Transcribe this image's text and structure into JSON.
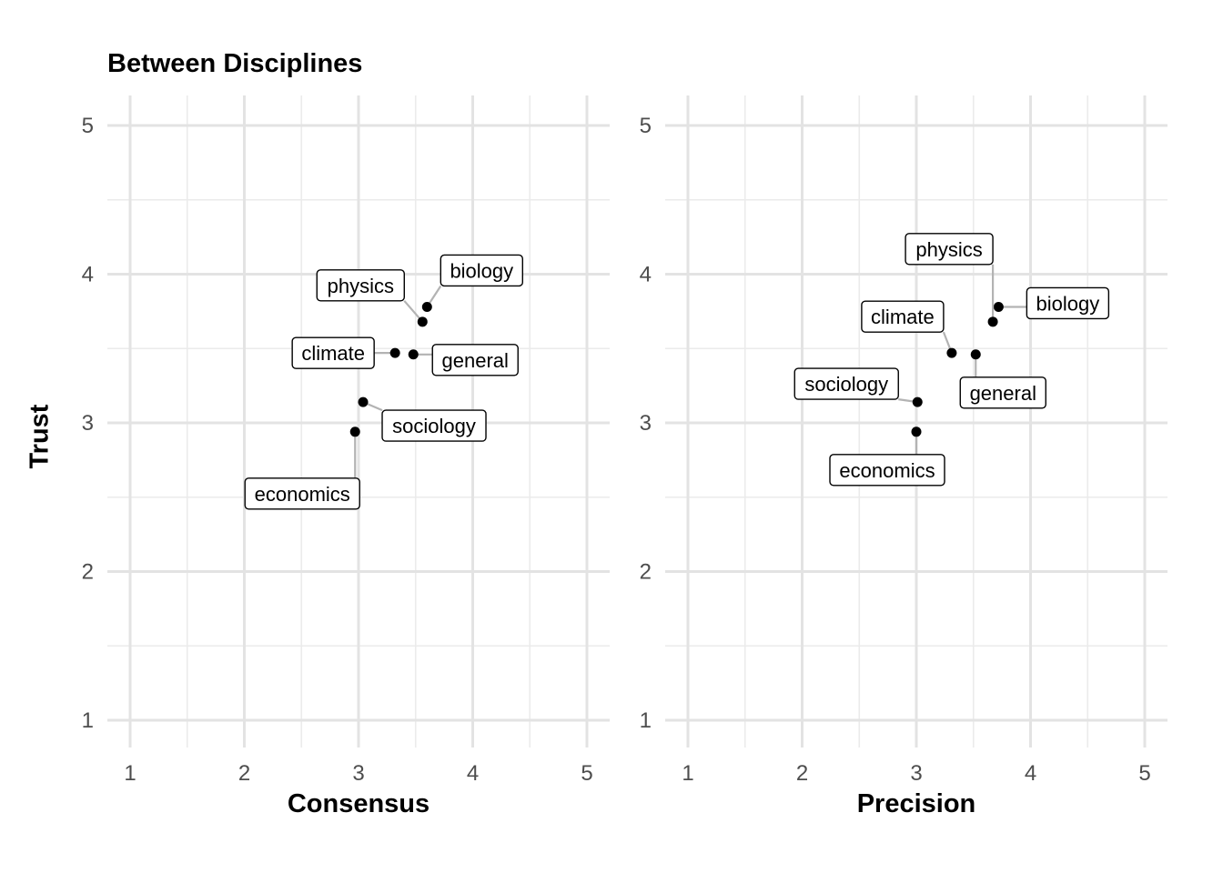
{
  "title": "Between Disciplines",
  "y_axis_label": "Trust",
  "chart_data": [
    {
      "type": "scatter",
      "title": "Between Disciplines",
      "xlabel": "Consensus",
      "ylabel": "Trust",
      "xlim": [
        1,
        5
      ],
      "ylim": [
        1,
        5
      ],
      "x_ticks": [
        "1",
        "2",
        "3",
        "4",
        "5"
      ],
      "y_ticks": [
        "1",
        "2",
        "3",
        "4",
        "5"
      ],
      "grid": true,
      "points": [
        {
          "label": "biology",
          "x": 3.6,
          "y": 3.78
        },
        {
          "label": "physics",
          "x": 3.56,
          "y": 3.68
        },
        {
          "label": "climate",
          "x": 3.32,
          "y": 3.47
        },
        {
          "label": "general",
          "x": 3.48,
          "y": 3.46
        },
        {
          "label": "sociology",
          "x": 3.04,
          "y": 3.14
        },
        {
          "label": "economics",
          "x": 2.97,
          "y": 2.94
        }
      ]
    },
    {
      "type": "scatter",
      "xlabel": "Precision",
      "ylabel": "Trust",
      "xlim": [
        1,
        5
      ],
      "ylim": [
        1,
        5
      ],
      "x_ticks": [
        "1",
        "2",
        "3",
        "4",
        "5"
      ],
      "y_ticks": [
        "1",
        "2",
        "3",
        "4",
        "5"
      ],
      "grid": true,
      "points": [
        {
          "label": "biology",
          "x": 3.72,
          "y": 3.78
        },
        {
          "label": "physics",
          "x": 3.67,
          "y": 3.68
        },
        {
          "label": "climate",
          "x": 3.31,
          "y": 3.47
        },
        {
          "label": "general",
          "x": 3.52,
          "y": 3.46
        },
        {
          "label": "sociology",
          "x": 3.01,
          "y": 3.14
        },
        {
          "label": "economics",
          "x": 3.0,
          "y": 2.94
        }
      ]
    }
  ]
}
